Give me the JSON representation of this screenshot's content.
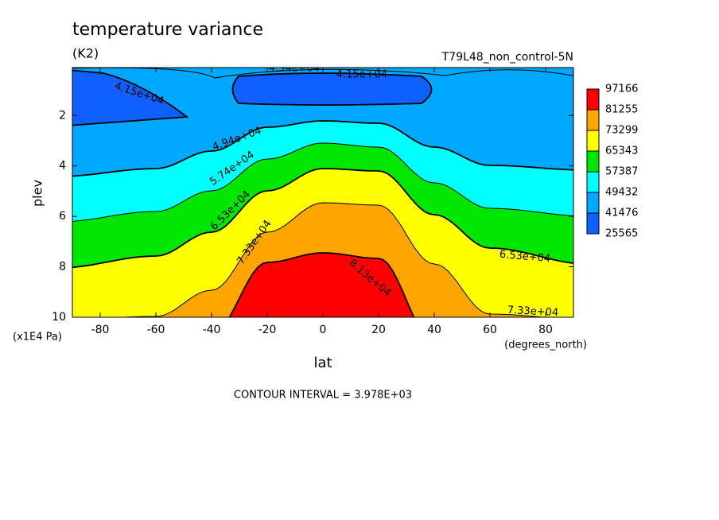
{
  "chart_data": {
    "type": "contourf",
    "title": "temperature variance",
    "units": "(K2)",
    "subtitle": "T79L48_non_control-5N",
    "xlabel": "lat",
    "ylabel": "plev",
    "x_units": "(degrees_north)",
    "y_units": "(x1E4 Pa)",
    "footer": "CONTOUR INTERVAL = 3.978E+03",
    "xlim": [
      -90,
      90
    ],
    "xticks": [
      -80,
      -60,
      -40,
      -20,
      0,
      20,
      40,
      60,
      80
    ],
    "ylim": [
      10,
      0.1
    ],
    "yticks": [
      2,
      4,
      6,
      8,
      10
    ],
    "levels": [
      25565,
      41476,
      49432,
      57387,
      65343,
      73299,
      81255,
      97166
    ],
    "colors": [
      "#1060ff",
      "#00a8ff",
      "#00ffff",
      "#00e600",
      "#ffff00",
      "#ffa500",
      "#ff0000"
    ],
    "contour_labels": [
      "4.15e+04",
      "4.94e+04",
      "4.15e+04",
      "4.94e+04",
      "5.74e+04",
      "6.53e+04",
      "7.33e+04",
      "8.13e+04",
      "6.53e+04",
      "7.33e+04"
    ]
  }
}
